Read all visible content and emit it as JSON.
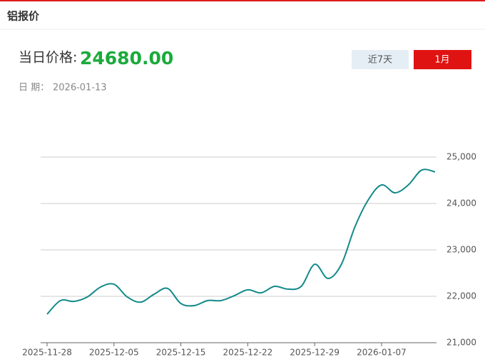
{
  "header": {
    "title": "铝报价"
  },
  "price": {
    "label": "当日价格:",
    "value": "24680.00"
  },
  "date": {
    "label": "日 期：",
    "value": "2026-01-13"
  },
  "buttons": [
    "近7天",
    "1月"
  ],
  "chart_data": {
    "type": "line",
    "categories": [
      "2025-11-28",
      null,
      null,
      null,
      null,
      "2025-12-05",
      null,
      null,
      null,
      null,
      "2025-12-15",
      null,
      null,
      null,
      null,
      "2025-12-22",
      null,
      null,
      null,
      null,
      "2025-12-29",
      null,
      null,
      null,
      null,
      "2026-01-07",
      null,
      null,
      null,
      null
    ],
    "series": [
      {
        "color": "#13898a",
        "values": [
          21615,
          21908,
          21890,
          21985,
          22200,
          22260,
          21985,
          21875,
          22045,
          22170,
          21845,
          21800,
          21908,
          21908,
          22015,
          22140,
          22075,
          22215,
          22155,
          22215,
          22690,
          22385,
          22690,
          23490,
          24075,
          24400,
          24230,
          24400,
          24720,
          24680
        ]
      }
    ],
    "ylim": [
      21000,
      25000
    ],
    "yticks": [
      {
        "value": 21000,
        "label": "21,000"
      },
      {
        "value": 22000,
        "label": "22,000"
      },
      {
        "value": 23000,
        "label": "23,000"
      },
      {
        "value": 24000,
        "label": "24,000"
      },
      {
        "value": 25000,
        "label": "25,000"
      }
    ],
    "grid": true
  }
}
